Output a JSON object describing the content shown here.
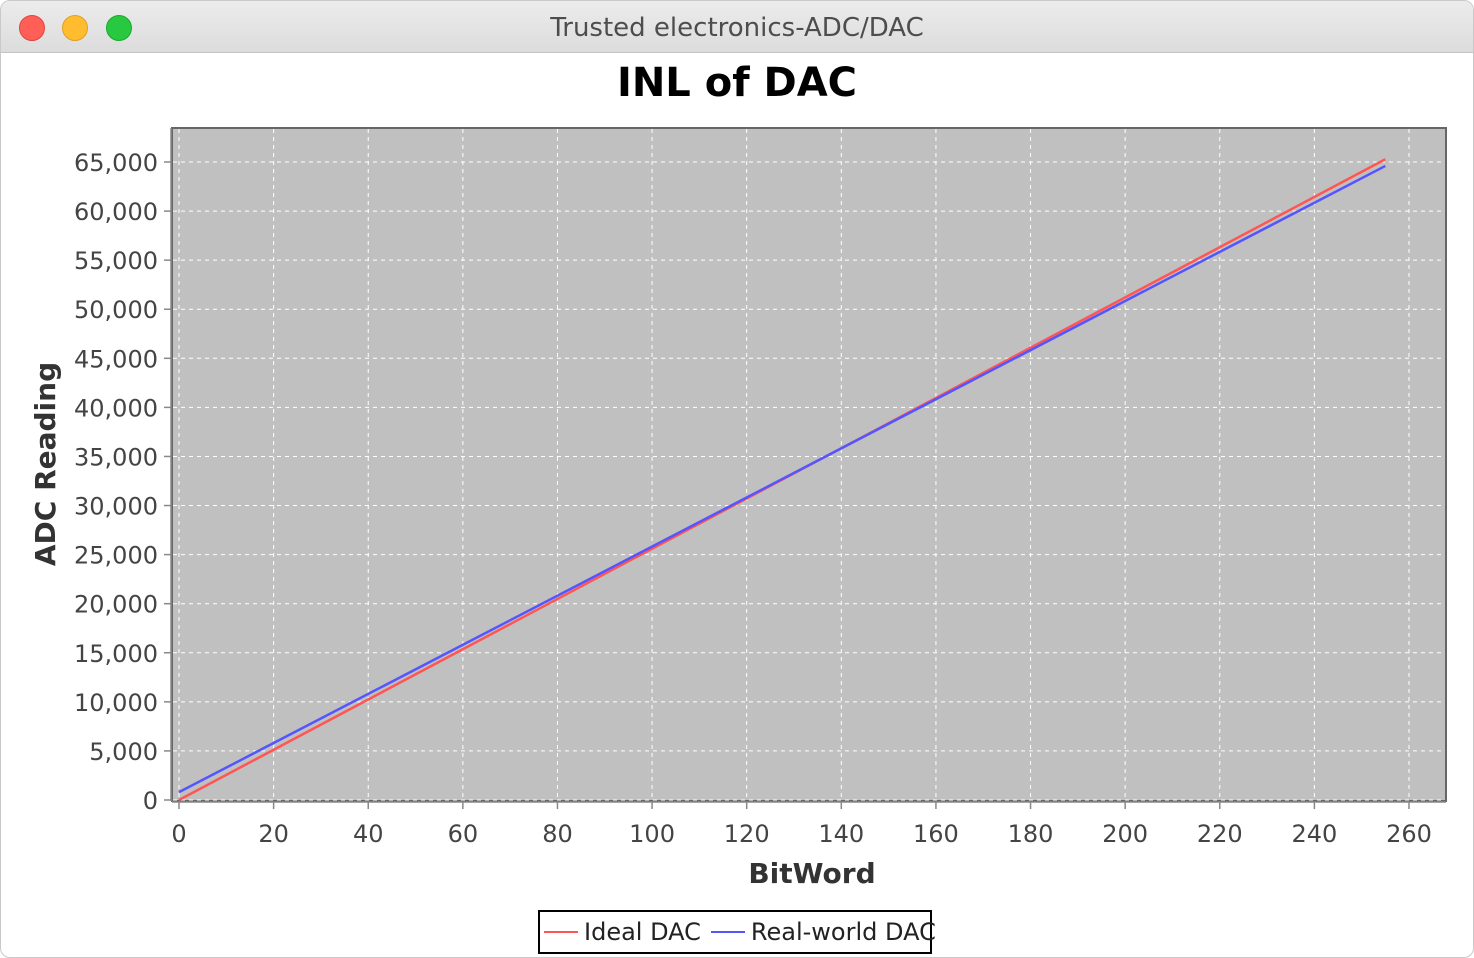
{
  "window": {
    "title": "Trusted electronics-ADC/DAC"
  },
  "chart_data": {
    "type": "line",
    "title": "INL of DAC",
    "xlabel": "BitWord",
    "ylabel": "ADC Reading",
    "xlim": [
      0,
      268
    ],
    "ylim": [
      0,
      68500
    ],
    "x_ticks": [
      0,
      20,
      40,
      60,
      80,
      100,
      120,
      140,
      160,
      180,
      200,
      220,
      240,
      260
    ],
    "x_tick_labels": [
      "0",
      "20",
      "40",
      "60",
      "80",
      "100",
      "120",
      "140",
      "160",
      "180",
      "200",
      "220",
      "240",
      "260"
    ],
    "y_ticks": [
      0,
      5000,
      10000,
      15000,
      20000,
      25000,
      30000,
      35000,
      40000,
      45000,
      50000,
      55000,
      60000,
      65000
    ],
    "y_tick_labels": [
      "0",
      "5,000",
      "10,000",
      "15,000",
      "20,000",
      "25,000",
      "30,000",
      "35,000",
      "40,000",
      "45,000",
      "50,000",
      "55,000",
      "60,000",
      "65,000"
    ],
    "grid": true,
    "legend_position": "bottom-center",
    "plot_background": "#c0c0c0",
    "series": [
      {
        "name": "Ideal DAC",
        "color": "#ff5555",
        "x": [
          0,
          255
        ],
        "y": [
          0,
          65280
        ]
      },
      {
        "name": "Real-world DAC",
        "color": "#5555ff",
        "x": [
          0,
          255
        ],
        "y": [
          800,
          64600
        ]
      }
    ]
  }
}
